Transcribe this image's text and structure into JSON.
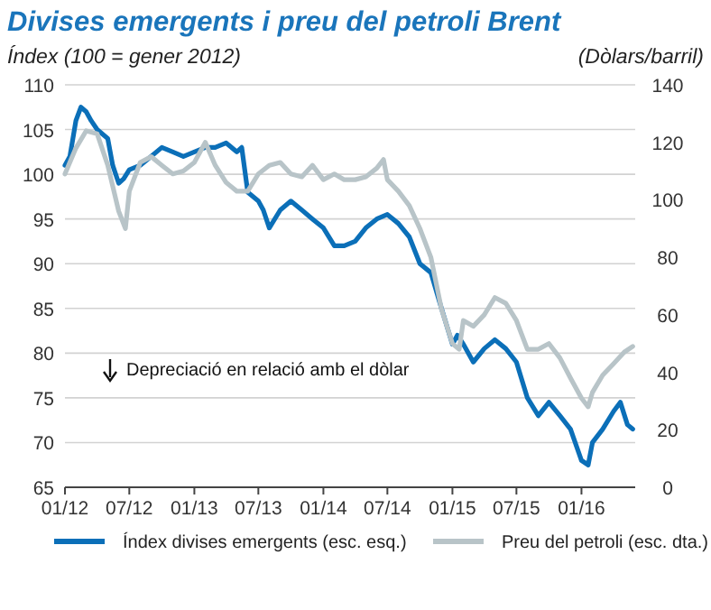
{
  "chart_data": {
    "type": "line",
    "title": "Divises emergents i preu del petroli Brent",
    "subtitle": "Índex (100 = gener 2012)",
    "y2label": "(Dòlars/barril)",
    "annotations": [
      "Depreciació en relació amb el dòlar"
    ],
    "xlim": [
      "2012-01-01",
      "2016-06-01"
    ],
    "xticks": [
      {
        "value": "2012-01-01",
        "label": "01/12"
      },
      {
        "value": "2012-07-01",
        "label": "07/12"
      },
      {
        "value": "2013-01-01",
        "label": "01/13"
      },
      {
        "value": "2013-07-01",
        "label": "07/13"
      },
      {
        "value": "2014-01-01",
        "label": "01/14"
      },
      {
        "value": "2014-07-01",
        "label": "07/14"
      },
      {
        "value": "2015-01-01",
        "label": "01/15"
      },
      {
        "value": "2015-07-01",
        "label": "07/15"
      },
      {
        "value": "2016-01-01",
        "label": "01/16"
      }
    ],
    "ylim": [
      65,
      110
    ],
    "yticks": [
      65,
      70,
      75,
      80,
      85,
      90,
      95,
      100,
      105,
      110
    ],
    "y2lim": [
      0,
      140
    ],
    "y2ticks": [
      0,
      20,
      40,
      60,
      80,
      100,
      120,
      140
    ],
    "grid": "y",
    "legend": "bottom",
    "marker": "none",
    "line_style": "solid",
    "series": [
      {
        "name": "Índex divises emergents (esc. esq.)",
        "color": "#0b6fb8",
        "x": [
          "2012-01-01",
          "2012-01-15",
          "2012-02-01",
          "2012-02-15",
          "2012-03-01",
          "2012-03-15",
          "2012-04-01",
          "2012-05-01",
          "2012-05-15",
          "2012-06-01",
          "2012-06-15",
          "2012-07-01",
          "2012-08-01",
          "2012-09-01",
          "2012-10-01",
          "2012-11-01",
          "2012-12-01",
          "2013-01-01",
          "2013-02-01",
          "2013-03-01",
          "2013-04-01",
          "2013-05-01",
          "2013-05-15",
          "2013-06-01",
          "2013-07-01",
          "2013-07-15",
          "2013-08-01",
          "2013-09-01",
          "2013-10-01",
          "2013-11-01",
          "2013-12-01",
          "2014-01-01",
          "2014-02-01",
          "2014-03-01",
          "2014-04-01",
          "2014-05-01",
          "2014-06-01",
          "2014-07-01",
          "2014-08-01",
          "2014-09-01",
          "2014-10-01",
          "2014-11-01",
          "2014-12-01",
          "2015-01-01",
          "2015-01-15",
          "2015-02-01",
          "2015-03-01",
          "2015-04-01",
          "2015-05-01",
          "2015-06-01",
          "2015-07-01",
          "2015-08-01",
          "2015-09-01",
          "2015-10-01",
          "2015-11-01",
          "2015-12-01",
          "2016-01-01",
          "2016-01-20",
          "2016-02-01",
          "2016-03-01",
          "2016-04-01",
          "2016-04-20",
          "2016-05-10",
          "2016-05-25"
        ],
        "values": [
          101,
          102,
          106,
          107.5,
          107,
          106,
          105,
          104,
          101,
          99,
          99.5,
          100.5,
          101,
          102,
          103,
          102.5,
          102,
          102.5,
          103,
          103,
          103.5,
          102.5,
          103,
          98,
          97,
          96,
          94,
          96,
          97,
          96,
          95,
          94,
          92,
          92,
          92.5,
          94,
          95,
          95.5,
          94.5,
          93,
          90,
          89,
          85,
          81,
          82,
          81,
          79,
          80.5,
          81.5,
          80.5,
          79,
          75,
          73,
          74.5,
          73,
          71.5,
          68,
          67.5,
          70,
          71.5,
          73.5,
          74.5,
          72,
          71.5
        ]
      },
      {
        "name": "Preu del petroli (esc. dta.)",
        "color": "#b8c4c8",
        "axis": "y2",
        "x": [
          "2012-01-01",
          "2012-02-01",
          "2012-03-01",
          "2012-04-01",
          "2012-05-01",
          "2012-06-01",
          "2012-06-20",
          "2012-07-01",
          "2012-08-01",
          "2012-09-01",
          "2012-10-01",
          "2012-11-01",
          "2012-12-01",
          "2013-01-01",
          "2013-02-01",
          "2013-03-01",
          "2013-04-01",
          "2013-05-01",
          "2013-06-01",
          "2013-07-01",
          "2013-08-01",
          "2013-09-01",
          "2013-10-01",
          "2013-11-01",
          "2013-12-01",
          "2014-01-01",
          "2014-02-01",
          "2014-03-01",
          "2014-04-01",
          "2014-05-01",
          "2014-06-01",
          "2014-06-20",
          "2014-07-01",
          "2014-08-01",
          "2014-09-01",
          "2014-10-01",
          "2014-11-01",
          "2014-12-01",
          "2015-01-01",
          "2015-01-20",
          "2015-02-01",
          "2015-03-01",
          "2015-04-01",
          "2015-05-01",
          "2015-06-01",
          "2015-07-01",
          "2015-08-01",
          "2015-09-01",
          "2015-10-01",
          "2015-11-01",
          "2015-12-01",
          "2016-01-01",
          "2016-01-20",
          "2016-02-01",
          "2016-03-01",
          "2016-04-01",
          "2016-05-01",
          "2016-05-25"
        ],
        "values": [
          109,
          118,
          124,
          123,
          112,
          96,
          90,
          103,
          113,
          115,
          112,
          109,
          110,
          113,
          120,
          112,
          106,
          103,
          103,
          109,
          112,
          113,
          109,
          108,
          112,
          107,
          109,
          107,
          107,
          108,
          111,
          114,
          107,
          103,
          98,
          90,
          80,
          62,
          50,
          48,
          58,
          56,
          60,
          66,
          64,
          58,
          48,
          48,
          50,
          45,
          38,
          31,
          28,
          33,
          39,
          43,
          47,
          49
        ]
      }
    ]
  }
}
